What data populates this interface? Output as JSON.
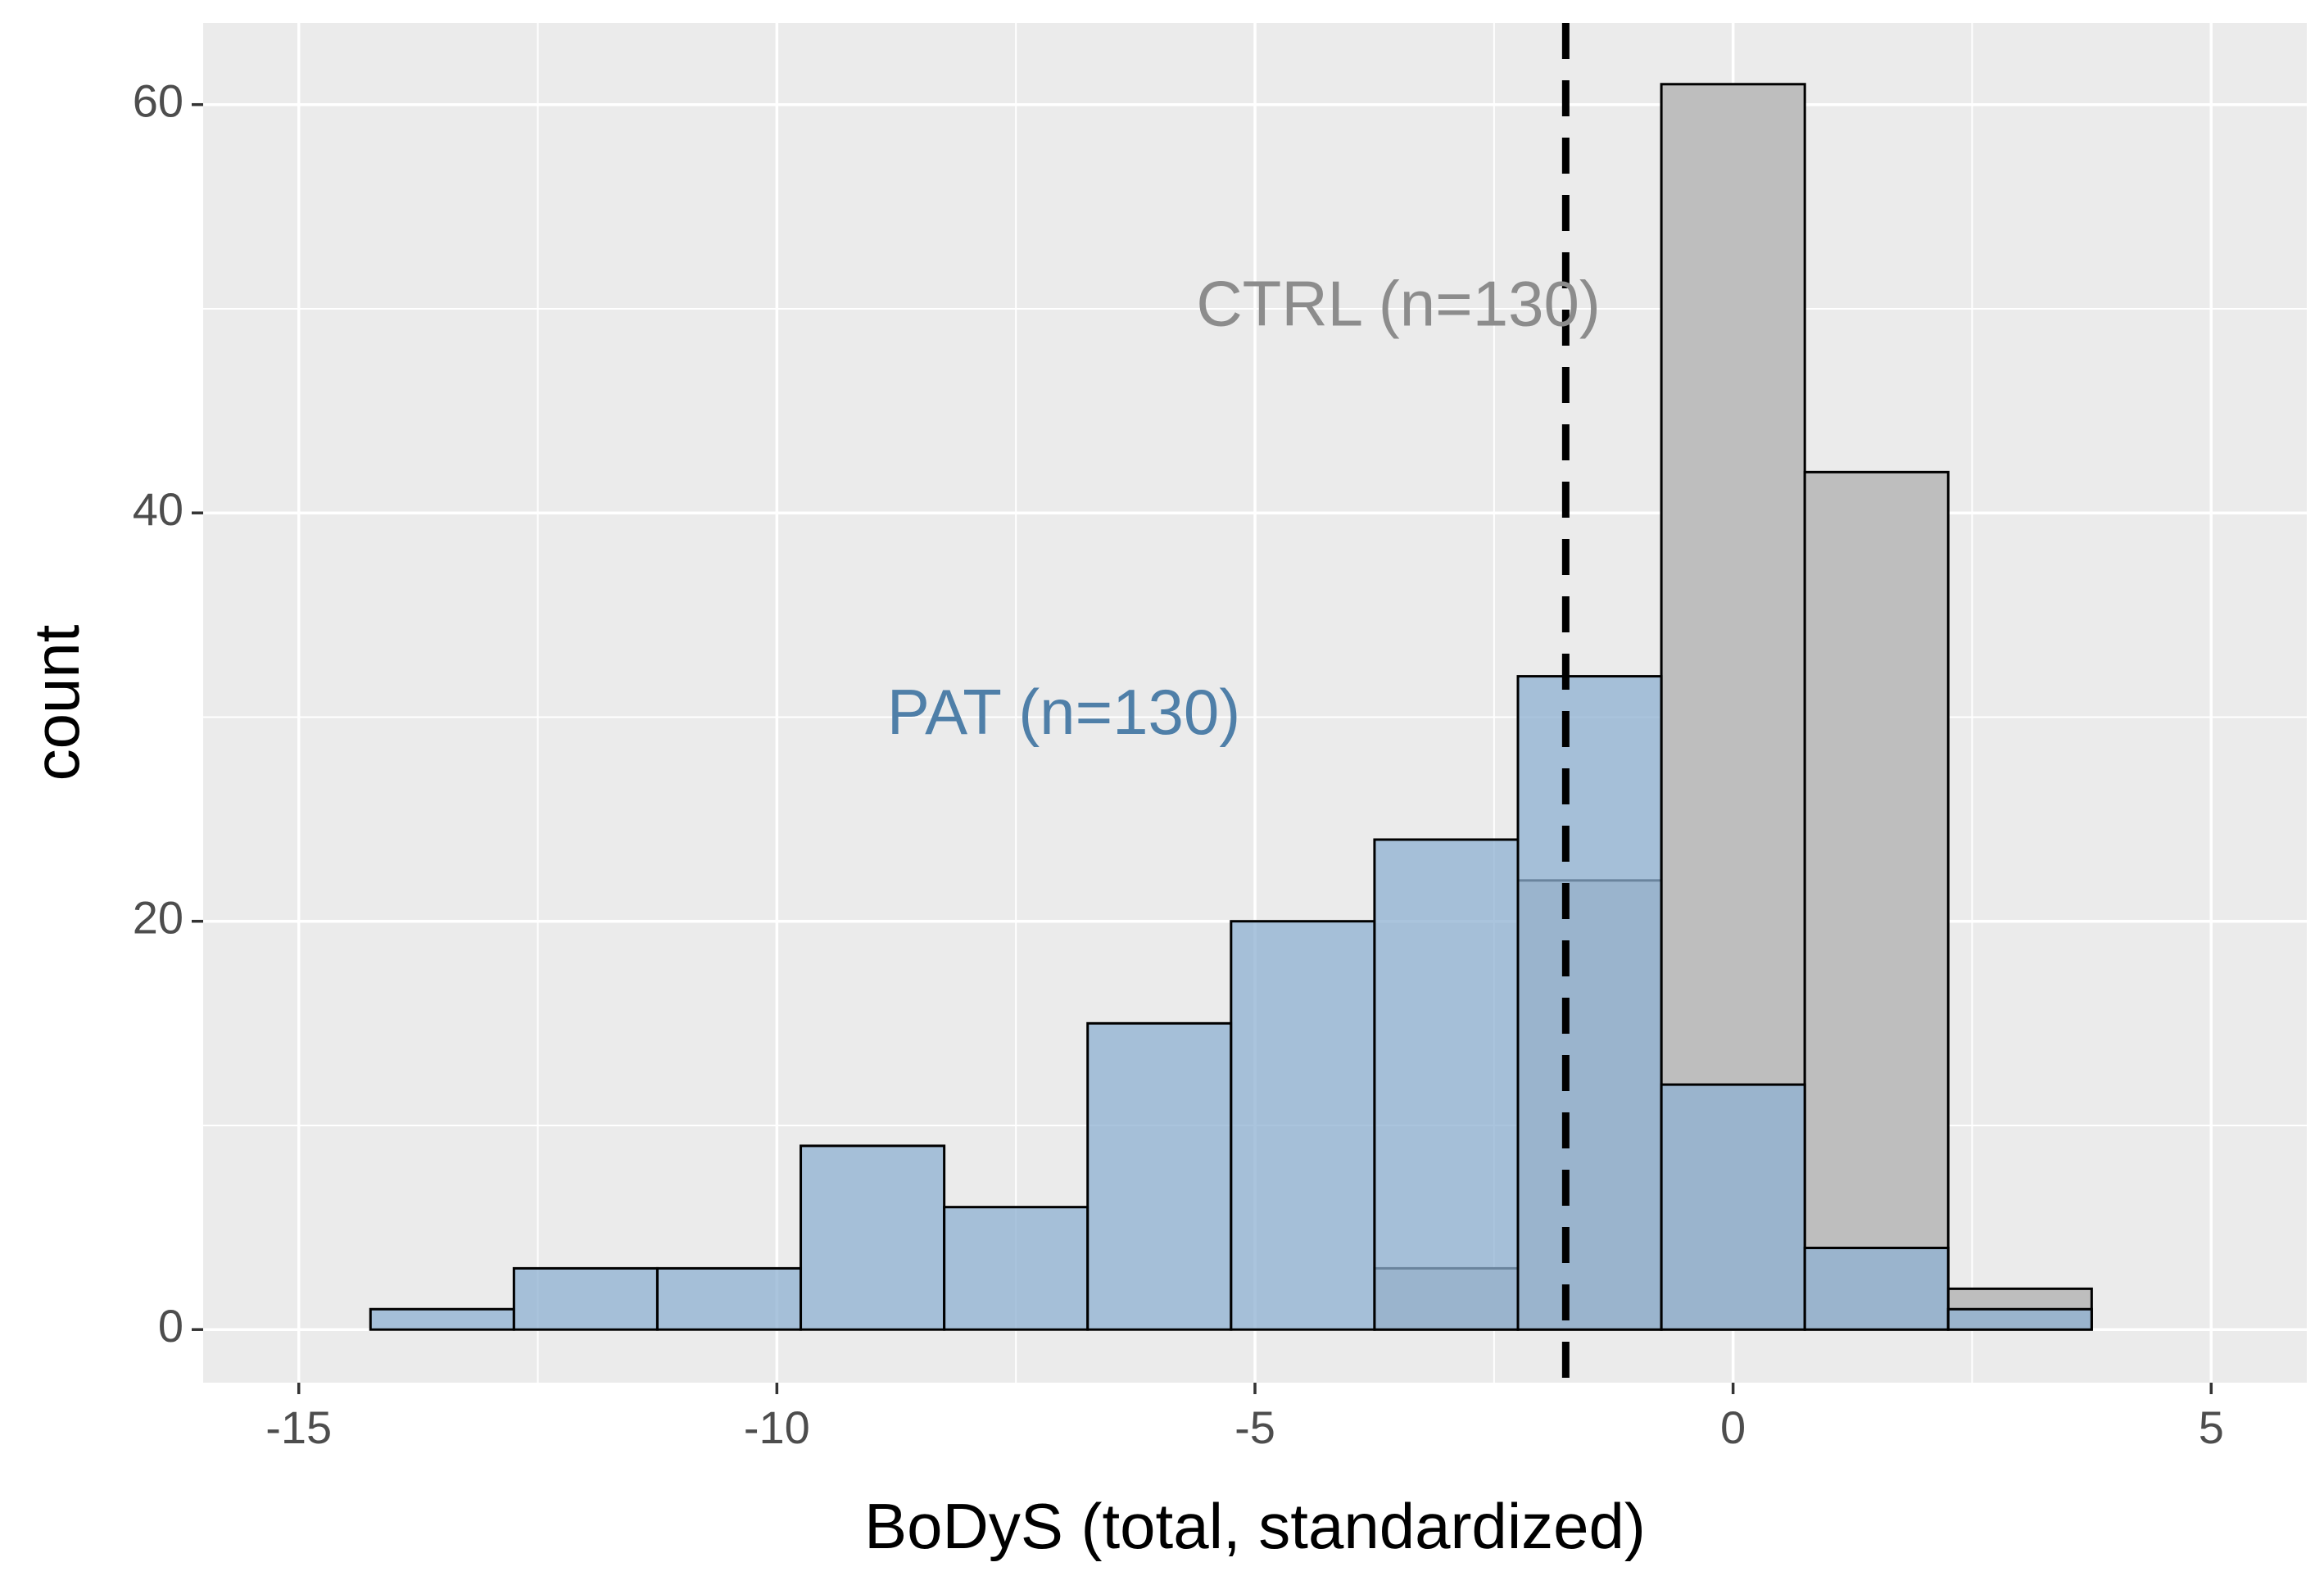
{
  "chart_data": {
    "type": "histogram",
    "title": "",
    "xlabel": "BoDyS (total, standardized)",
    "ylabel": "count",
    "xlim": [
      -16,
      6.0
    ],
    "ylim": [
      -2.6,
      64
    ],
    "x_ticks": [
      -15,
      -10,
      -5,
      0,
      5
    ],
    "x_tick_labels": [
      "-15",
      "-10",
      "-5",
      "0",
      "5"
    ],
    "y_ticks": [
      0,
      20,
      40,
      60
    ],
    "y_tick_labels": [
      "0",
      "20",
      "40",
      "60"
    ],
    "grid": true,
    "bin_width": 1.5,
    "series": [
      {
        "name": "CTRL",
        "color": "#bebebe",
        "bins": [
          {
            "x0": -3.75,
            "x1": -2.25,
            "count": 3
          },
          {
            "x0": -2.25,
            "x1": -0.75,
            "count": 22
          },
          {
            "x0": -0.75,
            "x1": 0.75,
            "count": 61
          },
          {
            "x0": 0.75,
            "x1": 2.25,
            "count": 42
          },
          {
            "x0": 2.25,
            "x1": 3.75,
            "count": 2
          }
        ]
      },
      {
        "name": "PAT",
        "color": "#8eb0d2",
        "bins": [
          {
            "x0": -14.25,
            "x1": -12.75,
            "count": 1
          },
          {
            "x0": -12.75,
            "x1": -11.25,
            "count": 3
          },
          {
            "x0": -11.25,
            "x1": -9.75,
            "count": 3
          },
          {
            "x0": -9.75,
            "x1": -8.25,
            "count": 9
          },
          {
            "x0": -8.25,
            "x1": -6.75,
            "count": 6
          },
          {
            "x0": -6.75,
            "x1": -5.25,
            "count": 15
          },
          {
            "x0": -5.25,
            "x1": -3.75,
            "count": 20
          },
          {
            "x0": -3.75,
            "x1": -2.25,
            "count": 24
          },
          {
            "x0": -2.25,
            "x1": -0.75,
            "count": 32
          },
          {
            "x0": -0.75,
            "x1": 0.75,
            "count": 12
          },
          {
            "x0": 0.75,
            "x1": 2.25,
            "count": 4
          },
          {
            "x0": 2.25,
            "x1": 3.75,
            "count": 1
          }
        ]
      }
    ],
    "reference_line": {
      "x": -1.75,
      "style": "dashed",
      "color": "#000000"
    },
    "annotations": [
      {
        "text": "CTRL (n=130)",
        "x": -3.5,
        "y": 50,
        "color": "#8c8c8c"
      },
      {
        "text": "PAT (n=130)",
        "x": -7.0,
        "y": 30,
        "color": "#4f7fa8"
      }
    ]
  }
}
